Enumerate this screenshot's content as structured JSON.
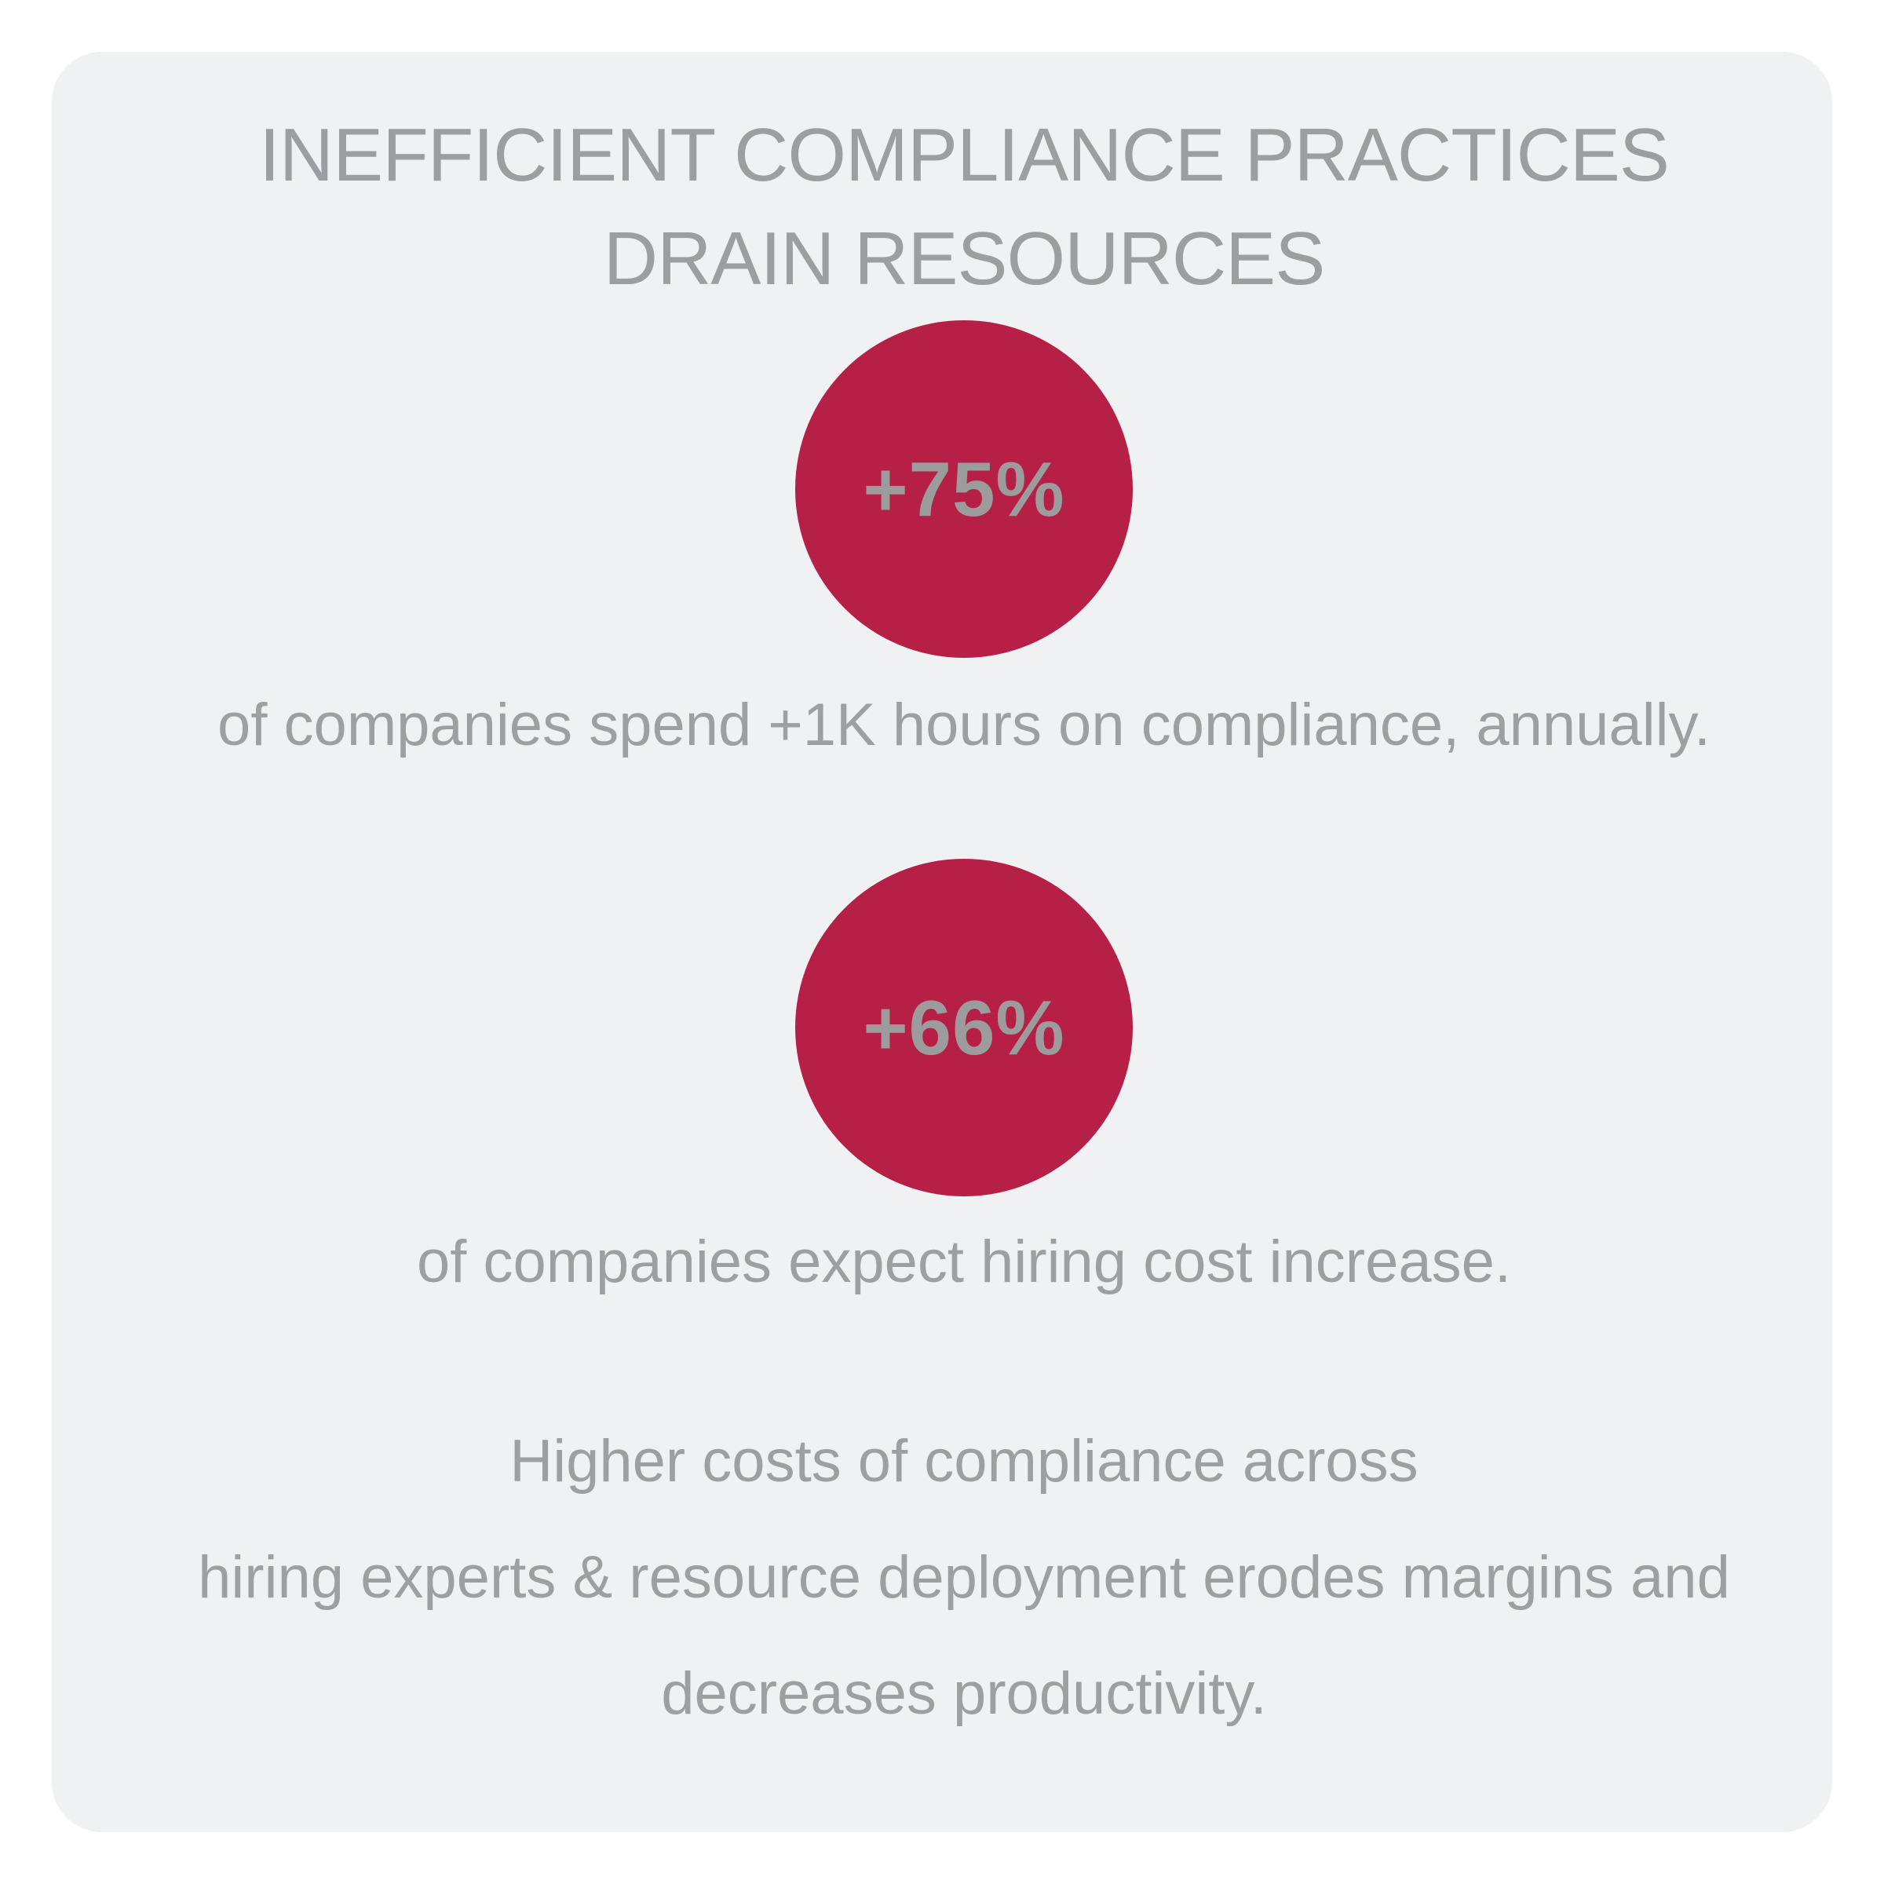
{
  "title": {
    "line1": "INEFFICIENT COMPLIANCE PRACTICES",
    "line2": "DRAIN RESOURCES"
  },
  "stats": [
    {
      "value": "+75%",
      "caption": "of companies spend +1K hours on compliance, annually."
    },
    {
      "value": "+66%",
      "caption": "of companies expect hiring cost increase."
    }
  ],
  "footer": {
    "lines": [
      "Higher costs of compliance across",
      "hiring experts & resource deployment erodes margins and",
      "decreases productivity."
    ]
  },
  "colors": {
    "accent_circle": "#B61F46",
    "text_gray": "#9DA0A3",
    "value_gray": "#9C9C9C",
    "card_background": "#F0F1F3",
    "page_background": "#FFFFFF"
  },
  "chart_data": {
    "type": "table",
    "title": "INEFFICIENT COMPLIANCE PRACTICES DRAIN RESOURCES",
    "categories": [
      "companies that spend +1K hours on compliance annually",
      "companies that expect hiring cost increase"
    ],
    "values": [
      75,
      66
    ],
    "value_labels": [
      "+75%",
      "+66%"
    ],
    "annotations": [
      "Higher costs of compliance across hiring experts & resource deployment erodes margins and decreases productivity."
    ],
    "legend_position": "none",
    "grid": false
  }
}
